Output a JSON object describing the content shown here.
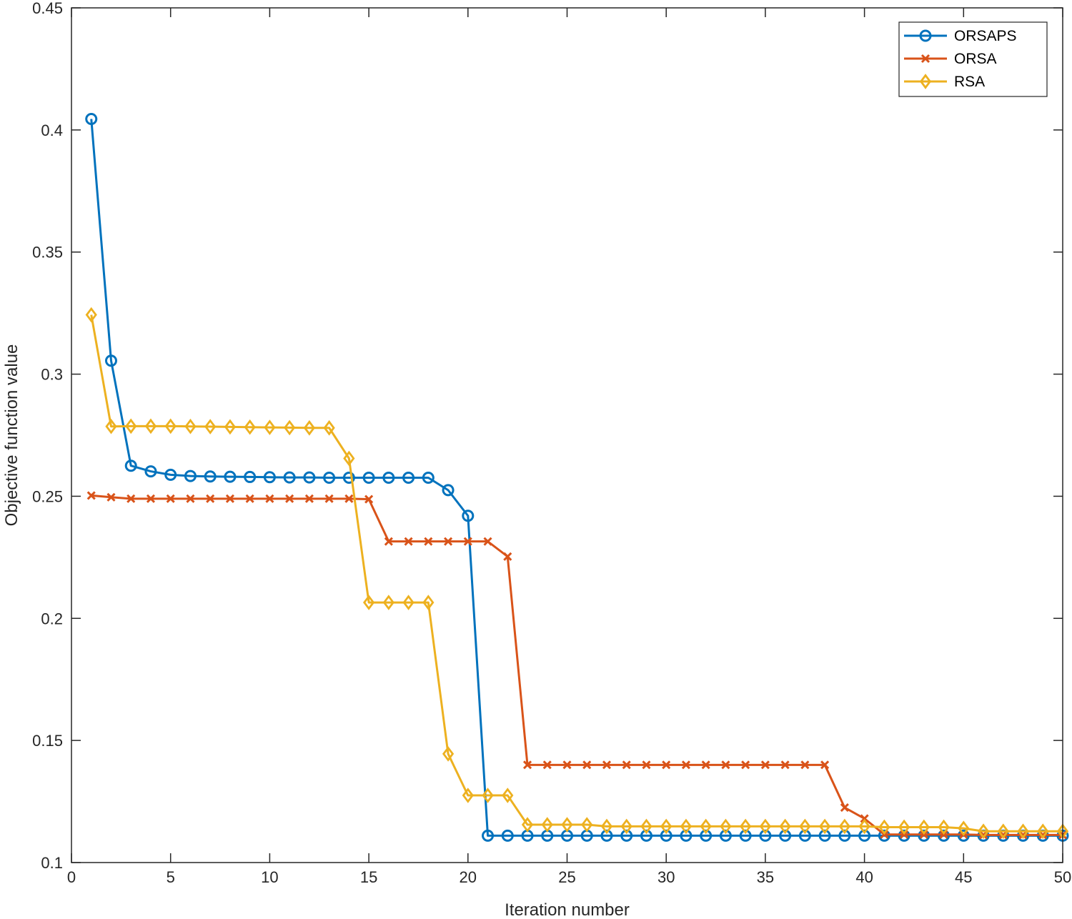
{
  "chart_data": {
    "type": "line",
    "title": "",
    "xlabel": "Iteration number",
    "ylabel": "Objective function value",
    "xlim": [
      0,
      50
    ],
    "ylim": [
      0.1,
      0.45
    ],
    "xticks": [
      0,
      5,
      10,
      15,
      20,
      25,
      30,
      35,
      40,
      45,
      50
    ],
    "yticks": [
      0.1,
      0.15,
      0.2,
      0.25,
      0.3,
      0.35,
      0.4,
      0.45
    ],
    "xtick_labels": [
      "0",
      "5",
      "10",
      "15",
      "20",
      "25",
      "30",
      "35",
      "40",
      "45",
      "50"
    ],
    "ytick_labels": [
      "0.1",
      "0.15",
      "0.2",
      "0.25",
      "0.3",
      "0.35",
      "0.4",
      "0.45"
    ],
    "grid": false,
    "legend_position": "top-right",
    "x": [
      1,
      2,
      3,
      4,
      5,
      6,
      7,
      8,
      9,
      10,
      11,
      12,
      13,
      14,
      15,
      16,
      17,
      18,
      19,
      20,
      21,
      22,
      23,
      24,
      25,
      26,
      27,
      28,
      29,
      30,
      31,
      32,
      33,
      34,
      35,
      36,
      37,
      38,
      39,
      40,
      41,
      42,
      43,
      44,
      45,
      46,
      47,
      48,
      49,
      50
    ],
    "series": [
      {
        "name": "ORSAPS",
        "color": "#0072BD",
        "marker": "circle",
        "values": [
          0.4045,
          0.3055,
          0.2625,
          0.2602,
          0.2588,
          0.2583,
          0.2581,
          0.258,
          0.2579,
          0.2578,
          0.2577,
          0.2577,
          0.2576,
          0.2576,
          0.2576,
          0.2576,
          0.2576,
          0.2576,
          0.2525,
          0.242,
          0.111,
          0.111,
          0.111,
          0.111,
          0.111,
          0.111,
          0.111,
          0.111,
          0.111,
          0.111,
          0.111,
          0.111,
          0.111,
          0.111,
          0.111,
          0.111,
          0.111,
          0.111,
          0.111,
          0.111,
          0.111,
          0.111,
          0.111,
          0.111,
          0.111,
          0.111,
          0.111,
          0.111,
          0.111,
          0.111
        ]
      },
      {
        "name": "ORSA",
        "color": "#D95319",
        "marker": "x",
        "values": [
          0.2503,
          0.2496,
          0.249,
          0.249,
          0.249,
          0.249,
          0.249,
          0.249,
          0.249,
          0.249,
          0.249,
          0.249,
          0.249,
          0.249,
          0.2488,
          0.2315,
          0.2315,
          0.2315,
          0.2315,
          0.2315,
          0.2315,
          0.2253,
          0.14,
          0.14,
          0.14,
          0.14,
          0.14,
          0.14,
          0.14,
          0.14,
          0.14,
          0.14,
          0.14,
          0.14,
          0.14,
          0.14,
          0.14,
          0.14,
          0.1225,
          0.118,
          0.1115,
          0.1115,
          0.1115,
          0.1115,
          0.1115,
          0.1113,
          0.1113,
          0.1113,
          0.1113,
          0.1113
        ]
      },
      {
        "name": "RSA",
        "color": "#EDB120",
        "marker": "diamond",
        "values": [
          0.3243,
          0.2786,
          0.2787,
          0.2787,
          0.2787,
          0.2786,
          0.2785,
          0.2784,
          0.2783,
          0.2782,
          0.2781,
          0.278,
          0.278,
          0.2655,
          0.2065,
          0.2065,
          0.2065,
          0.2065,
          0.1445,
          0.1275,
          0.1275,
          0.1275,
          0.1155,
          0.1155,
          0.1155,
          0.1155,
          0.1148,
          0.1148,
          0.1148,
          0.1148,
          0.1148,
          0.1148,
          0.1148,
          0.1148,
          0.1148,
          0.1148,
          0.1148,
          0.1148,
          0.1148,
          0.1148,
          0.1145,
          0.1145,
          0.1145,
          0.1145,
          0.114,
          0.1128,
          0.1128,
          0.1128,
          0.1128,
          0.1128
        ]
      }
    ]
  }
}
